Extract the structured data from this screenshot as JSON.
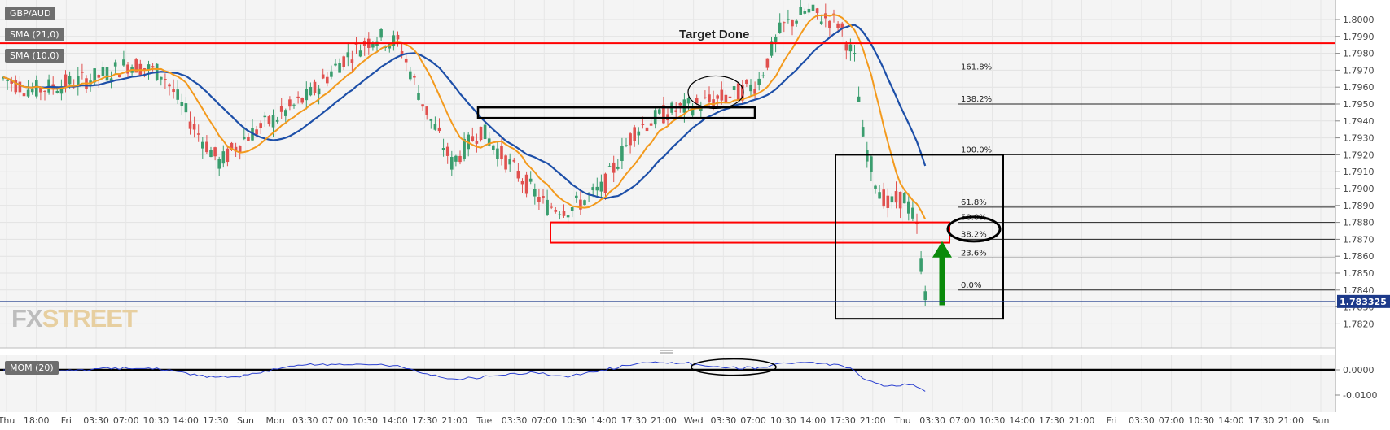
{
  "instrument": "GBP/AUD",
  "indicators": [
    "SMA (21,0)",
    "SMA (10,0)"
  ],
  "momentum_label": "MOM (20)",
  "watermark": {
    "fx": "FX",
    "street": "STREET"
  },
  "annotations": {
    "target": "Target Done"
  },
  "colors": {
    "bull": "#3a9d6e",
    "bear": "#e0514f",
    "sma21": "#1d4fa8",
    "sma10": "#f39a1d",
    "resistance": "#ff0000",
    "arrow": "#0a8a0a",
    "mom": "#2a3fd0"
  },
  "chart_data": {
    "type": "candlestick",
    "ylim": [
      1.782,
      1.8008
    ],
    "y_ticks": [
      "1.8000",
      "1.7990",
      "1.7980",
      "1.7970",
      "1.7960",
      "1.7950",
      "1.7940",
      "1.7930",
      "1.7920",
      "1.7910",
      "1.7900",
      "1.7890",
      "1.7880",
      "1.7870",
      "1.7860",
      "1.7850",
      "1.7840",
      "1.7830",
      "1.7820"
    ],
    "last_price": "1.783325",
    "x_ticks": [
      "Thu",
      "18:00",
      "Fri",
      "03:30",
      "07:00",
      "10:30",
      "14:00",
      "17:30",
      "Sun",
      "Mon",
      "03:30",
      "07:00",
      "10:30",
      "14:00",
      "17:30",
      "21:00",
      "Tue",
      "03:30",
      "07:00",
      "10:30",
      "14:00",
      "17:30",
      "21:00",
      "Wed",
      "03:30",
      "07:00",
      "10:30",
      "14:00",
      "17:30",
      "21:00",
      "Thu",
      "03:30",
      "07:00",
      "10:30",
      "14:00",
      "17:30",
      "21:00",
      "Fri",
      "03:30",
      "07:00",
      "10:30",
      "14:00",
      "17:30",
      "21:00",
      "Sun"
    ],
    "resistance_level": 1.7986,
    "fibonacci": [
      {
        "label": "161.8%",
        "value": 1.7969
      },
      {
        "label": "138.2%",
        "value": 1.795
      },
      {
        "label": "100.0%",
        "value": 1.792
      },
      {
        "label": "61.8%",
        "value": 1.7889
      },
      {
        "label": "50.0%",
        "value": 1.788
      },
      {
        "label": "38.2%",
        "value": 1.787
      },
      {
        "label": "23.6%",
        "value": 1.7859
      },
      {
        "label": "0.0%",
        "value": 1.784
      }
    ],
    "mom_ticks": [
      "0.0000",
      "-0.0100"
    ],
    "mom_ylim": [
      -0.014,
      0.011
    ]
  }
}
